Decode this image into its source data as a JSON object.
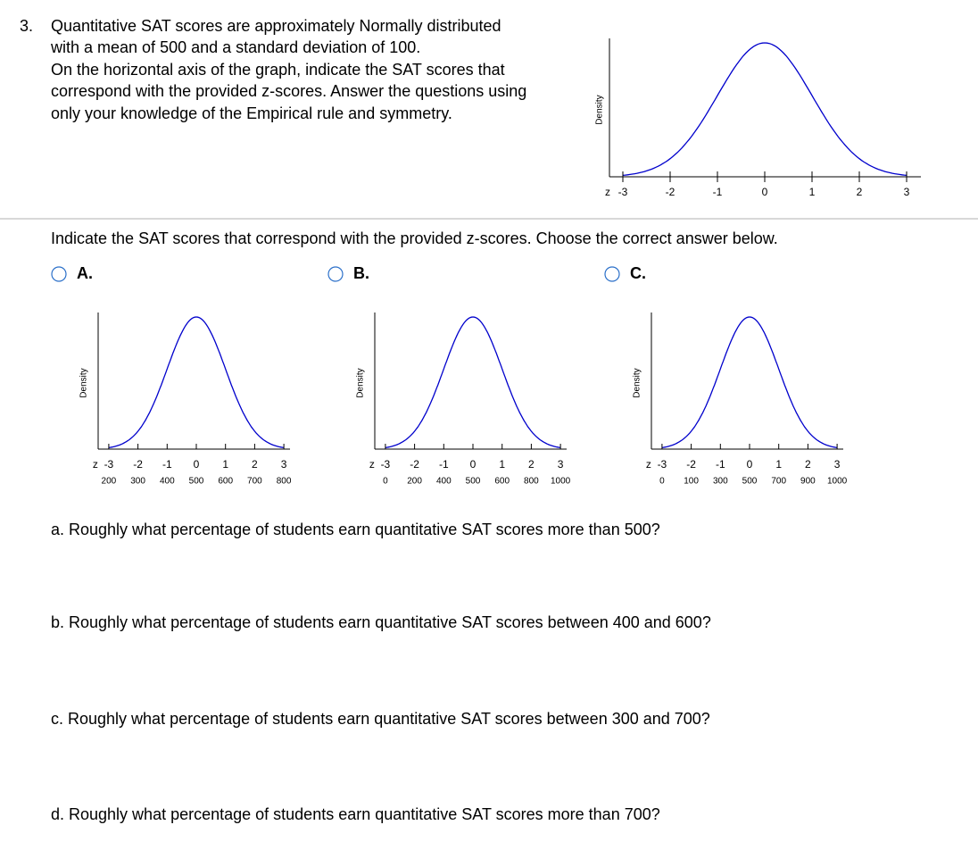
{
  "question": {
    "number": "3.",
    "lines": [
      "Quantitative SAT scores are approximately Normally distributed",
      "with a mean of 500 and a standard deviation of 100.",
      "On the horizontal axis of the graph, indicate the SAT scores that",
      "correspond with the provided z-scores. Answer the questions using",
      "only your knowledge of the Empirical rule and symmetry."
    ]
  },
  "main_graph": {
    "y_label": "Density",
    "z_label": "z",
    "z_ticks": [
      "-3",
      "-2",
      "-1",
      "0",
      "1",
      "2",
      "3"
    ]
  },
  "prompt": "Indicate the SAT scores that correspond with the provided z-scores. Choose the correct answer below.",
  "options": [
    {
      "letter": "A.",
      "y_label": "Density",
      "z_label": "z",
      "z_ticks": [
        "-3",
        "-2",
        "-1",
        "0",
        "1",
        "2",
        "3"
      ],
      "scores": [
        "200",
        "300",
        "400",
        "500",
        "600",
        "700",
        "800"
      ]
    },
    {
      "letter": "B.",
      "y_label": "Density",
      "z_label": "z",
      "z_ticks": [
        "-3",
        "-2",
        "-1",
        "0",
        "1",
        "2",
        "3"
      ],
      "scores": [
        "0",
        "200",
        "400",
        "500",
        "600",
        "800",
        "1000"
      ]
    },
    {
      "letter": "C.",
      "y_label": "Density",
      "z_label": "z",
      "z_ticks": [
        "-3",
        "-2",
        "-1",
        "0",
        "1",
        "2",
        "3"
      ],
      "scores": [
        "0",
        "100",
        "300",
        "500",
        "700",
        "900",
        "1000"
      ]
    }
  ],
  "parts": [
    "a. Roughly what percentage of students earn quantitative SAT scores more than 500?",
    "b. Roughly what percentage of students earn quantitative SAT scores between 400 and 600?",
    "c. Roughly what percentage of students earn quantitative SAT scores between 300 and 700?",
    "d. Roughly what percentage of students earn quantitative SAT scores more than 700?"
  ]
}
